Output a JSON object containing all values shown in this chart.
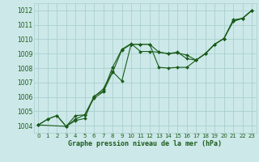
{
  "xlabel": "Graphe pression niveau de la mer (hPa)",
  "background_color": "#cce8e8",
  "grid_color": "#aacfcf",
  "line_color": "#1a5c1a",
  "xlim": [
    -0.5,
    23.5
  ],
  "ylim": [
    1003.5,
    1012.5
  ],
  "xticks": [
    0,
    1,
    2,
    3,
    4,
    5,
    6,
    7,
    8,
    9,
    10,
    11,
    12,
    13,
    14,
    15,
    16,
    17,
    18,
    19,
    20,
    21,
    22,
    23
  ],
  "yticks": [
    1004,
    1005,
    1006,
    1007,
    1008,
    1009,
    1010,
    1011,
    1012
  ],
  "series1_x": [
    0,
    1,
    2,
    3,
    4,
    5,
    6,
    7,
    8,
    9,
    10,
    11,
    12,
    13,
    14,
    15,
    16,
    17,
    18,
    19,
    20,
    21,
    22,
    23
  ],
  "series1_y": [
    1004.05,
    1004.45,
    1004.7,
    1003.95,
    1004.45,
    1004.75,
    1006.0,
    1006.55,
    1007.75,
    1007.1,
    1009.65,
    1009.65,
    1009.65,
    1008.05,
    1008.0,
    1008.05,
    1008.05,
    1008.55,
    1009.0,
    1009.65,
    1010.05,
    1011.25,
    1011.45,
    1012.0
  ],
  "series2_x": [
    0,
    1,
    2,
    3,
    4,
    5,
    6,
    7,
    8,
    9,
    10,
    11,
    12,
    13,
    14,
    15,
    16,
    17,
    18,
    19,
    20,
    21,
    22,
    23
  ],
  "series2_y": [
    1004.05,
    1004.45,
    1004.7,
    1003.95,
    1004.7,
    1004.75,
    1005.9,
    1006.35,
    1007.7,
    1009.25,
    1009.65,
    1009.65,
    1009.65,
    1009.1,
    1009.0,
    1009.05,
    1008.9,
    1008.55,
    1009.0,
    1009.65,
    1010.05,
    1011.25,
    1011.45,
    1012.0
  ],
  "series3_x": [
    0,
    3,
    4,
    5,
    6,
    7,
    8,
    9,
    10,
    11,
    12,
    13,
    14,
    15,
    16,
    17,
    18,
    19,
    20,
    21,
    22,
    23
  ],
  "series3_y": [
    1004.05,
    1003.95,
    1004.35,
    1004.5,
    1006.05,
    1006.4,
    1008.05,
    1009.3,
    1009.7,
    1009.15,
    1009.15,
    1009.1,
    1009.0,
    1009.1,
    1008.65,
    1008.55,
    1009.0,
    1009.65,
    1010.05,
    1011.35,
    1011.45,
    1012.0
  ]
}
